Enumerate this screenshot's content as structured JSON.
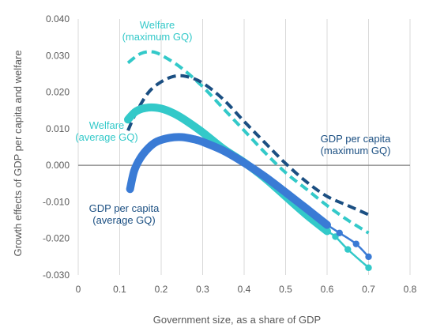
{
  "chart_data": {
    "type": "line",
    "title": "",
    "xlabel": "Government size, as a share of GDP",
    "ylabel": "Growth effects of GDP per capita and welfare",
    "xlim": [
      0,
      0.8
    ],
    "ylim": [
      -0.03,
      0.04
    ],
    "xticks": [
      0,
      0.1,
      0.2,
      0.3,
      0.4,
      0.5,
      0.6,
      0.7,
      0.8
    ],
    "xtick_labels": [
      "0",
      "0.1",
      "0.2",
      "0.3",
      "0.4",
      "0.5",
      "0.6",
      "0.7",
      "0.8"
    ],
    "yticks": [
      0.04,
      0.03,
      0.02,
      0.01,
      0,
      -0.01,
      -0.02,
      -0.03
    ],
    "ytick_labels": [
      "0.040",
      "0.030",
      "0.020",
      "0.010",
      "0.000",
      "-0.010",
      "-0.020",
      "-0.030"
    ],
    "grid": "vertical",
    "legend": "none (series labelled by annotations)",
    "series": [
      {
        "name": "Welfare (maximum GQ)",
        "style": "dashed",
        "color": "#33C9C9",
        "x": [
          0.12,
          0.15,
          0.18,
          0.21,
          0.25,
          0.3,
          0.35,
          0.4,
          0.45,
          0.5,
          0.55,
          0.6,
          0.65,
          0.7
        ],
        "y": [
          0.028,
          0.0305,
          0.031,
          0.0295,
          0.0265,
          0.0215,
          0.0155,
          0.0095,
          0.0035,
          -0.002,
          -0.0065,
          -0.011,
          -0.015,
          -0.0185
        ]
      },
      {
        "name": "GDP per capita (maximum GQ)",
        "style": "dashed",
        "color": "#1B4F82",
        "x": [
          0.12,
          0.14,
          0.17,
          0.2,
          0.23,
          0.26,
          0.3,
          0.35,
          0.4,
          0.45,
          0.5,
          0.55,
          0.6,
          0.65,
          0.7
        ],
        "y": [
          0.0095,
          0.0145,
          0.02,
          0.0228,
          0.0243,
          0.0243,
          0.0225,
          0.018,
          0.012,
          0.0062,
          0.0005,
          -0.0045,
          -0.0085,
          -0.011,
          -0.0135
        ]
      },
      {
        "name": "Welfare (average GQ)",
        "style": "solid-thick",
        "color": "#33C9C9",
        "x": [
          0.12,
          0.14,
          0.17,
          0.2,
          0.23,
          0.26,
          0.3,
          0.35,
          0.4,
          0.45,
          0.5,
          0.55,
          0.6,
          0.62,
          0.65,
          0.7
        ],
        "y": [
          0.0125,
          0.0148,
          0.0158,
          0.0155,
          0.0142,
          0.0122,
          0.009,
          0.0045,
          0.0008,
          -0.0035,
          -0.0085,
          -0.0135,
          -0.018,
          -0.0195,
          -0.023,
          -0.028
        ]
      },
      {
        "name": "GDP per capita (average GQ)",
        "style": "solid-thick",
        "color": "#3A7BD5",
        "x": [
          0.125,
          0.135,
          0.15,
          0.17,
          0.19,
          0.22,
          0.25,
          0.28,
          0.3,
          0.35,
          0.4,
          0.45,
          0.5,
          0.55,
          0.6,
          0.63,
          0.67,
          0.7
        ],
        "y": [
          -0.0065,
          -0.0015,
          0.002,
          0.0048,
          0.0065,
          0.0075,
          0.0077,
          0.0071,
          0.0064,
          0.004,
          0.0007,
          -0.0031,
          -0.0074,
          -0.0118,
          -0.0163,
          -0.0185,
          -0.0215,
          -0.025
        ]
      }
    ],
    "annotations": [
      {
        "text": [
          "Welfare",
          "(maximum GQ)"
        ],
        "color": "#33C9C9"
      },
      {
        "text": [
          "Welfare",
          "(average GQ)"
        ],
        "color": "#33C9C9"
      },
      {
        "text": [
          "GDP per capita",
          "(maximum GQ)"
        ],
        "color": "#1B4F82"
      },
      {
        "text": [
          "GDP per capita",
          "(average GQ)"
        ],
        "color": "#1B4F82"
      }
    ]
  }
}
